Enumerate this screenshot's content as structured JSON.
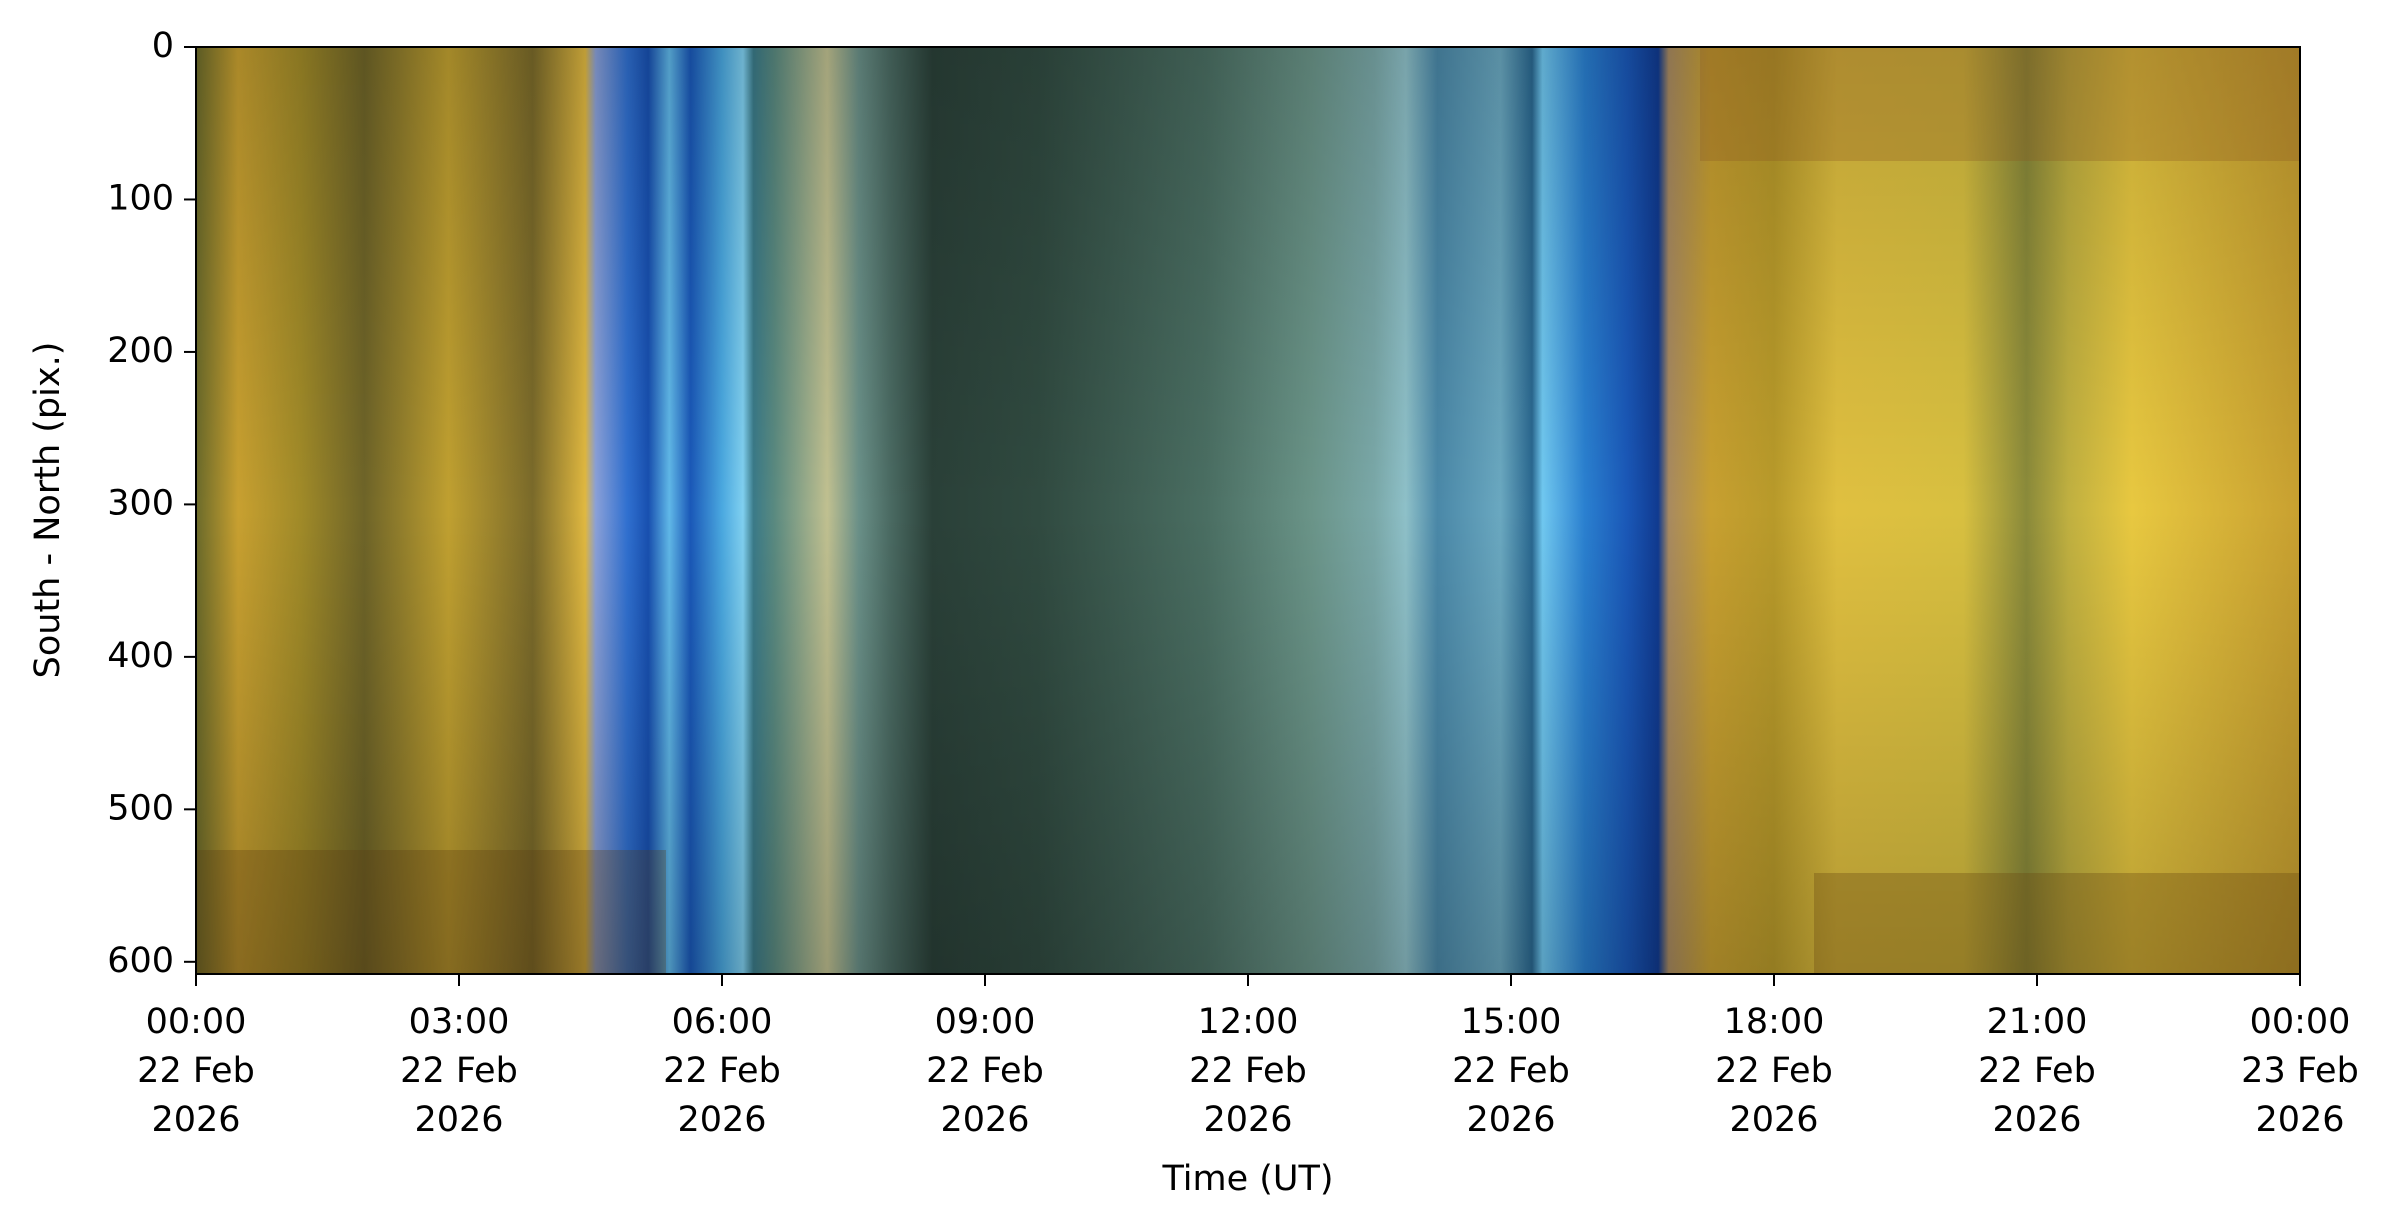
{
  "chart_data": {
    "type": "image",
    "x_label": "Time (UT)",
    "y_label": "South - North (pix.)",
    "xlim": [
      "2026-02-22 00:00",
      "2026-02-23 00:00"
    ],
    "xticks": [
      {
        "value": "2026-02-22 00:00",
        "label": [
          "00:00",
          "22 Feb",
          "2026"
        ]
      },
      {
        "value": "2026-02-22 03:00",
        "label": [
          "03:00",
          "22 Feb",
          "2026"
        ]
      },
      {
        "value": "2026-02-22 06:00",
        "label": [
          "06:00",
          "22 Feb",
          "2026"
        ]
      },
      {
        "value": "2026-02-22 09:00",
        "label": [
          "09:00",
          "22 Feb",
          "2026"
        ]
      },
      {
        "value": "2026-02-22 12:00",
        "label": [
          "12:00",
          "22 Feb",
          "2026"
        ]
      },
      {
        "value": "2026-02-22 15:00",
        "label": [
          "15:00",
          "22 Feb",
          "2026"
        ]
      },
      {
        "value": "2026-02-22 18:00",
        "label": [
          "18:00",
          "22 Feb",
          "2026"
        ]
      },
      {
        "value": "2026-02-22 21:00",
        "label": [
          "21:00",
          "22 Feb",
          "2026"
        ]
      },
      {
        "value": "2026-02-23 00:00",
        "label": [
          "00:00",
          "23 Feb",
          "2026"
        ]
      }
    ],
    "ylim": [
      608,
      0
    ],
    "yticks": [
      0,
      100,
      200,
      300,
      400,
      500,
      600
    ]
  }
}
